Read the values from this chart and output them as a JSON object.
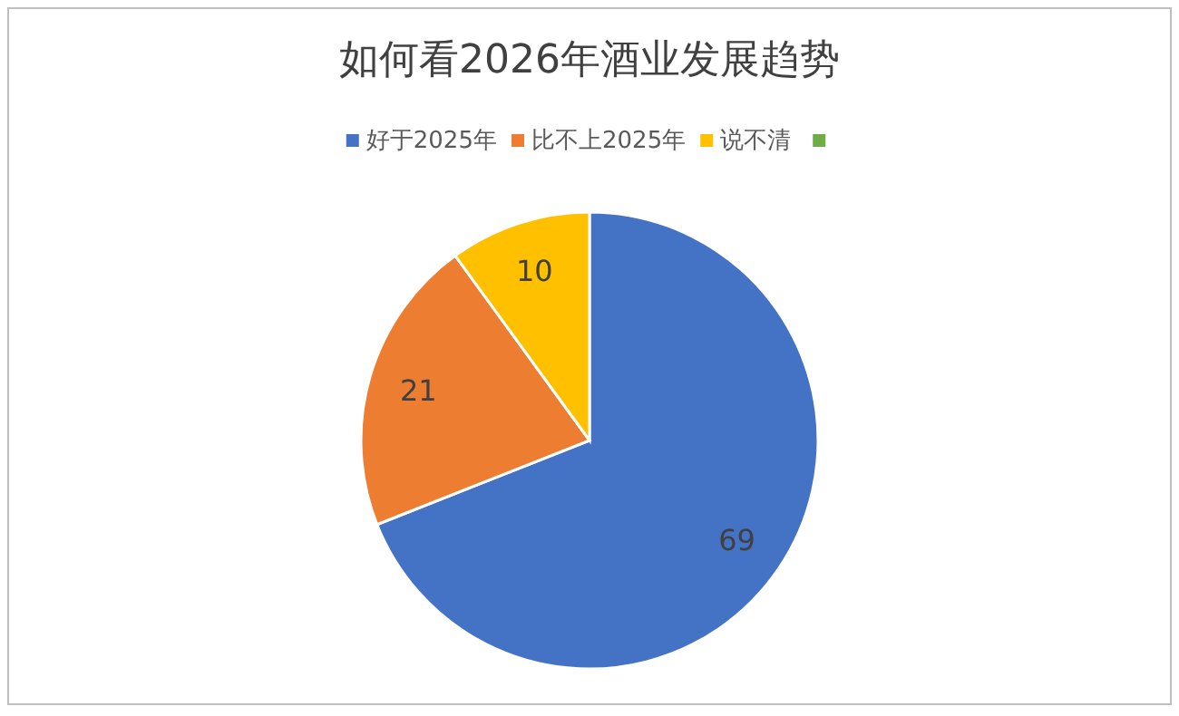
{
  "chart_data": {
    "type": "pie",
    "title": "如何看2026年酒业发展趋势",
    "categories": [
      "好于2025年",
      "比不上2025年",
      "说不清",
      null
    ],
    "values": [
      69,
      21,
      10,
      null
    ],
    "colors": [
      "#4472c4",
      "#ed7d31",
      "#ffc000",
      "#70ad47"
    ],
    "data_labels": true,
    "legend": "top"
  }
}
